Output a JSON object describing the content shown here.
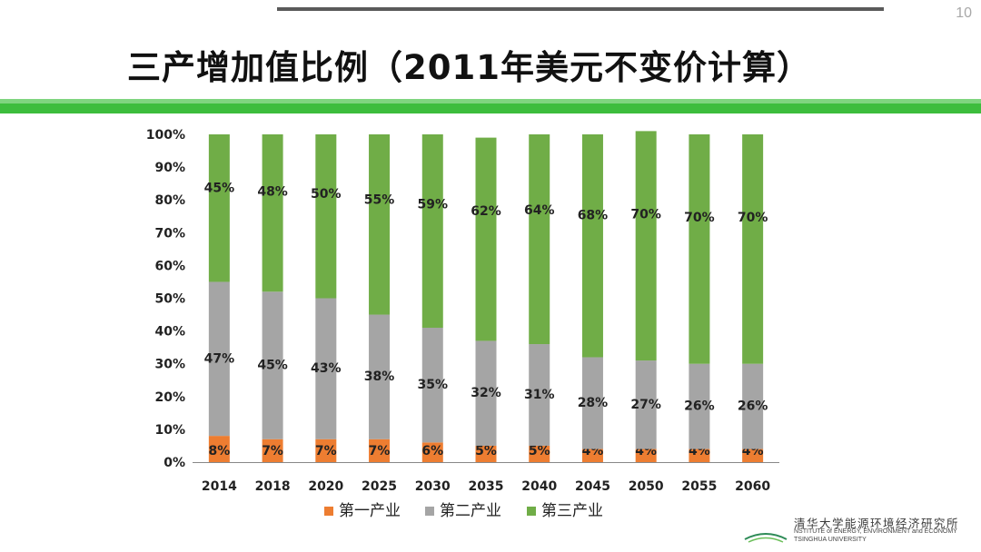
{
  "page": {
    "number": "10",
    "title": "三产增加值比例（2011年美元不变价计算）"
  },
  "colors": {
    "primary": "#ed7d31",
    "secondary": "#a5a5a5",
    "tertiary": "#70ad47",
    "band": "#3dbd3d"
  },
  "chart_data": {
    "type": "bar",
    "stacked": true,
    "categories": [
      "2014",
      "2018",
      "2020",
      "2025",
      "2030",
      "2035",
      "2040",
      "2045",
      "2050",
      "2055",
      "2060"
    ],
    "series": [
      {
        "name": "第一产业",
        "color": "#ed7d31",
        "values": [
          8,
          7,
          7,
          7,
          6,
          5,
          5,
          4,
          4,
          4,
          4
        ]
      },
      {
        "name": "第二产业",
        "color": "#a5a5a5",
        "values": [
          47,
          45,
          43,
          38,
          35,
          32,
          31,
          28,
          27,
          26,
          26
        ]
      },
      {
        "name": "第三产业",
        "color": "#70ad47",
        "values": [
          45,
          48,
          50,
          55,
          59,
          62,
          64,
          68,
          70,
          70,
          70
        ]
      }
    ],
    "data_label_suffix": "%",
    "ylim": [
      0,
      100
    ],
    "y_ticks": [
      "0%",
      "10%",
      "20%",
      "30%",
      "40%",
      "50%",
      "60%",
      "70%",
      "80%",
      "90%",
      "100%"
    ],
    "grid": false,
    "legend_position": "bottom"
  },
  "logo": {
    "cn": "清华大学能源环境经济研究所",
    "en_line1": "NSTITUTE of ENERGY, ENVIRONMENT and ECONOMY",
    "en_line2": "TSINGHUA UNIVERSITY"
  }
}
